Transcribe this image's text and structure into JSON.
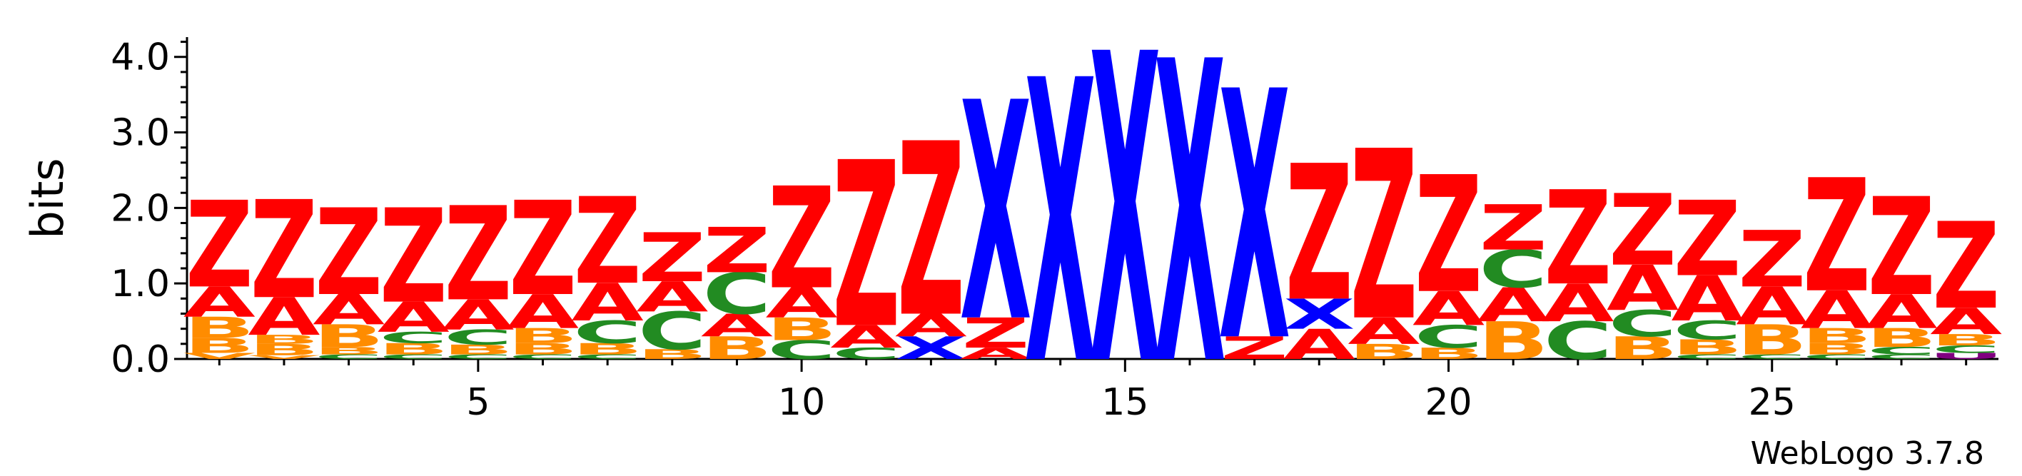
{
  "chart_data": {
    "type": "sequence-logo",
    "ylabel": "bits",
    "ylim": [
      0,
      4.3
    ],
    "yticks": [
      "0.0",
      "1.0",
      "2.0",
      "3.0",
      "4.0"
    ],
    "xticks": [
      5,
      10,
      15,
      20,
      25
    ],
    "positions": 28,
    "credit": "WebLogo 3.7.8",
    "colors": {
      "Z": "#ff0000",
      "X": "#0000ff",
      "A": "#ff0000",
      "B": "#ff8c00",
      "C": "#228b22",
      "V": "#ff8c00",
      "U": "#800080"
    },
    "columns": [
      [
        [
          "V",
          0.08
        ],
        [
          "B",
          0.2
        ],
        [
          "B",
          0.28
        ],
        [
          "A",
          0.4
        ],
        [
          "Z",
          1.15
        ]
      ],
      [
        [
          "V",
          0.05
        ],
        [
          "B",
          0.15
        ],
        [
          "B",
          0.12
        ],
        [
          "A",
          0.5
        ],
        [
          "Z",
          1.3
        ]
      ],
      [
        [
          "C",
          0.06
        ],
        [
          "B",
          0.1
        ],
        [
          "B",
          0.3
        ],
        [
          "A",
          0.4
        ],
        [
          "Z",
          1.15
        ]
      ],
      [
        [
          "C",
          0.06
        ],
        [
          "B",
          0.15
        ],
        [
          "C",
          0.15
        ],
        [
          "A",
          0.4
        ],
        [
          "Z",
          1.25
        ]
      ],
      [
        [
          "C",
          0.06
        ],
        [
          "B",
          0.13
        ],
        [
          "C",
          0.2
        ],
        [
          "A",
          0.4
        ],
        [
          "Z",
          1.25
        ]
      ],
      [
        [
          "C",
          0.06
        ],
        [
          "B",
          0.15
        ],
        [
          "B",
          0.2
        ],
        [
          "A",
          0.45
        ],
        [
          "Z",
          1.25
        ]
      ],
      [
        [
          "C",
          0.06
        ],
        [
          "B",
          0.15
        ],
        [
          "C",
          0.3
        ],
        [
          "A",
          0.5
        ],
        [
          "Z",
          1.15
        ]
      ],
      [
        [
          "B",
          0.13
        ],
        [
          "C",
          0.5
        ],
        [
          "A",
          0.4
        ],
        [
          "Z",
          0.65
        ]
      ],
      [
        [
          "B",
          0.3
        ],
        [
          "A",
          0.3
        ],
        [
          "C",
          0.55
        ],
        [
          "Z",
          0.6
        ]
      ],
      [
        [
          "C",
          0.25
        ],
        [
          "B",
          0.3
        ],
        [
          "A",
          0.4
        ],
        [
          "Z",
          1.35
        ]
      ],
      [
        [
          "C",
          0.15
        ],
        [
          "A",
          0.3
        ],
        [
          "Z",
          2.2
        ]
      ],
      [
        [
          "X",
          0.3
        ],
        [
          "A",
          0.3
        ],
        [
          "Z",
          2.3
        ]
      ],
      [
        [
          "A",
          0.15
        ],
        [
          "Z",
          0.4
        ],
        [
          "X",
          2.9
        ]
      ],
      [
        [
          "X",
          3.75
        ]
      ],
      [
        [
          "X",
          4.1
        ]
      ],
      [
        [
          "X",
          4.0
        ]
      ],
      [
        [
          "Z",
          0.3
        ],
        [
          "X",
          3.3
        ]
      ],
      [
        [
          "A",
          0.4
        ],
        [
          "X",
          0.4
        ],
        [
          "Z",
          1.8
        ]
      ],
      [
        [
          "B",
          0.2
        ],
        [
          "A",
          0.35
        ],
        [
          "Z",
          2.25
        ]
      ],
      [
        [
          "B",
          0.15
        ],
        [
          "C",
          0.3
        ],
        [
          "A",
          0.45
        ],
        [
          "Z",
          1.55
        ]
      ],
      [
        [
          "B",
          0.5
        ],
        [
          "A",
          0.45
        ],
        [
          "C",
          0.5
        ],
        [
          "Z",
          0.6
        ]
      ],
      [
        [
          "C",
          0.5
        ],
        [
          "A",
          0.5
        ],
        [
          "Z",
          1.25
        ]
      ],
      [
        [
          "B",
          0.3
        ],
        [
          "C",
          0.35
        ],
        [
          "A",
          0.6
        ],
        [
          "Z",
          0.95
        ]
      ],
      [
        [
          "C",
          0.06
        ],
        [
          "B",
          0.2
        ],
        [
          "C",
          0.25
        ],
        [
          "A",
          0.6
        ],
        [
          "Z",
          1.0
        ]
      ],
      [
        [
          "C",
          0.06
        ],
        [
          "B",
          0.4
        ],
        [
          "A",
          0.5
        ],
        [
          "Z",
          0.75
        ]
      ],
      [
        [
          "C",
          0.06
        ],
        [
          "B",
          0.15
        ],
        [
          "B",
          0.2
        ],
        [
          "A",
          0.5
        ],
        [
          "Z",
          1.5
        ]
      ],
      [
        [
          "C",
          0.06
        ],
        [
          "C",
          0.1
        ],
        [
          "B",
          0.25
        ],
        [
          "A",
          0.45
        ],
        [
          "Z",
          1.3
        ]
      ],
      [
        [
          "U",
          0.08
        ],
        [
          "C",
          0.1
        ],
        [
          "B",
          0.15
        ],
        [
          "A",
          0.35
        ],
        [
          "Z",
          1.15
        ]
      ]
    ]
  }
}
